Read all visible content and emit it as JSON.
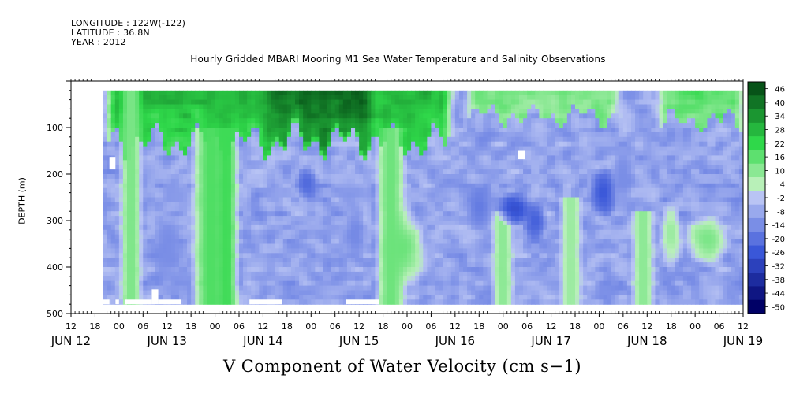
{
  "header": {
    "longitude": "LONGITUDE : 122W(-122)",
    "latitude": "LATITUDE : 36.8N",
    "year": "YEAR : 2012"
  },
  "colors": {
    "negative_extreme": "#000066",
    "negative_mid": "#3a57d8",
    "negative_light": "#b9c4f4",
    "positive_light": "#b8f0b8",
    "positive_mid": "#2fd84a",
    "positive_extreme": "#003d10",
    "missing": "#ffffff"
  },
  "chart_data": {
    "type": "heatmap",
    "title": "Hourly Gridded MBARI Mooring M1 Sea Water Temperature and Salinity Observations",
    "xlabel": "V Component of Water Velocity (cm s−1)",
    "ylabel": "DEPTH (m)",
    "x_hour_ticks": [
      "12",
      "18",
      "00",
      "06",
      "12",
      "18",
      "00",
      "06",
      "12",
      "18",
      "00",
      "06",
      "12",
      "18",
      "00",
      "06",
      "12",
      "18",
      "00",
      "06",
      "12",
      "18",
      "00",
      "06",
      "12",
      "18",
      "00",
      "06",
      "12"
    ],
    "x_day_labels": [
      "JUN 12",
      "JUN 13",
      "JUN 14",
      "JUN 15",
      "JUN 16",
      "JUN 17",
      "JUN 18",
      "JUN 19"
    ],
    "x_range_hours_since_jun12_00": [
      12,
      180
    ],
    "data_start_hour": 20,
    "y_ticks": [
      "100",
      "200",
      "300",
      "400",
      "500"
    ],
    "ylim": [
      0,
      500
    ],
    "y_reversed": true,
    "data_depth_range_m": [
      20,
      480
    ],
    "colorbar": {
      "levels": [
        "46",
        "40",
        "34",
        "28",
        "22",
        "16",
        "10",
        "4",
        "-2",
        "-8",
        "-14",
        "-20",
        "-26",
        "-32",
        "-38",
        "-44",
        "-50"
      ],
      "min": -50,
      "max": 50
    },
    "grid": false,
    "features": [
      {
        "type": "surface_jet",
        "t0": 20,
        "t1": 108,
        "depth_base": 130,
        "value": 30
      },
      {
        "type": "surface_jet",
        "t0": 110,
        "t1": 150,
        "depth_base": 75,
        "value": 14
      },
      {
        "type": "surface_jet",
        "t0": 158,
        "t1": 181,
        "depth_base": 85,
        "value": 18
      },
      {
        "type": "surface_jet",
        "t0": 60,
        "t1": 88,
        "depth_base": 120,
        "value": 45
      },
      {
        "type": "column",
        "t_center": 27,
        "width": 3,
        "d0": 20,
        "d1": 480,
        "value": 12
      },
      {
        "type": "column",
        "t_center": 47,
        "width": 5,
        "d0": 100,
        "d1": 480,
        "value": 18
      },
      {
        "type": "column",
        "t_center": 51,
        "width": 3,
        "d0": 100,
        "d1": 480,
        "value": 20
      },
      {
        "type": "column",
        "t_center": 92,
        "width": 4,
        "d0": 100,
        "d1": 480,
        "value": 14
      },
      {
        "type": "column",
        "t_center": 120,
        "width": 3,
        "d0": 280,
        "d1": 480,
        "value": 10
      },
      {
        "type": "column",
        "t_center": 137,
        "width": 3,
        "d0": 250,
        "d1": 480,
        "value": 8
      },
      {
        "type": "column",
        "t_center": 155,
        "width": 3,
        "d0": 280,
        "d1": 480,
        "value": 10
      },
      {
        "type": "blob",
        "t_center": 95,
        "d_center": 360,
        "rt": 6,
        "rd": 90,
        "value": 14
      },
      {
        "type": "blob",
        "t_center": 71,
        "d_center": 220,
        "rt": 3,
        "rd": 40,
        "value": -22
      },
      {
        "type": "blob",
        "t_center": 83,
        "d_center": 330,
        "rt": 3,
        "rd": 70,
        "value": -15
      },
      {
        "type": "blob",
        "t_center": 114,
        "d_center": 270,
        "rt": 4,
        "rd": 60,
        "value": -18
      },
      {
        "type": "blob",
        "t_center": 123,
        "d_center": 275,
        "rt": 5,
        "rd": 40,
        "value": -28
      },
      {
        "type": "blob",
        "t_center": 128,
        "d_center": 300,
        "rt": 3,
        "rd": 50,
        "value": -24
      },
      {
        "type": "blob",
        "t_center": 145,
        "d_center": 240,
        "rt": 4,
        "rd": 60,
        "value": -26
      },
      {
        "type": "blob",
        "t_center": 150,
        "d_center": 200,
        "rt": 3,
        "rd": 80,
        "value": -14
      },
      {
        "type": "blob",
        "t_center": 171,
        "d_center": 340,
        "rt": 6,
        "rd": 60,
        "value": 12
      },
      {
        "type": "blob",
        "t_center": 36,
        "d_center": 360,
        "rt": 4,
        "rd": 80,
        "value": -14
      },
      {
        "type": "blob",
        "t_center": 162,
        "d_center": 330,
        "rt": 3,
        "rd": 80,
        "value": 8
      }
    ],
    "missing_blocks": [
      {
        "t0": 20,
        "t1": 21.6,
        "d0": 470,
        "d1": 480
      },
      {
        "t0": 21.6,
        "t1": 23.1,
        "d0": 163,
        "d1": 190
      },
      {
        "t0": 23.1,
        "t1": 24.0,
        "d0": 470,
        "d1": 480
      },
      {
        "t0": 25.6,
        "t1": 32.2,
        "d0": 470,
        "d1": 480
      },
      {
        "t0": 32.2,
        "t1": 33.8,
        "d0": 448,
        "d1": 480
      },
      {
        "t0": 33.8,
        "t1": 39.6,
        "d0": 470,
        "d1": 480
      },
      {
        "t0": 56.6,
        "t1": 64.7,
        "d0": 470,
        "d1": 480
      },
      {
        "t0": 80.7,
        "t1": 89.1,
        "d0": 470,
        "d1": 480
      },
      {
        "t0": 123.8,
        "t1": 125.4,
        "d0": 150,
        "d1": 168
      }
    ]
  }
}
